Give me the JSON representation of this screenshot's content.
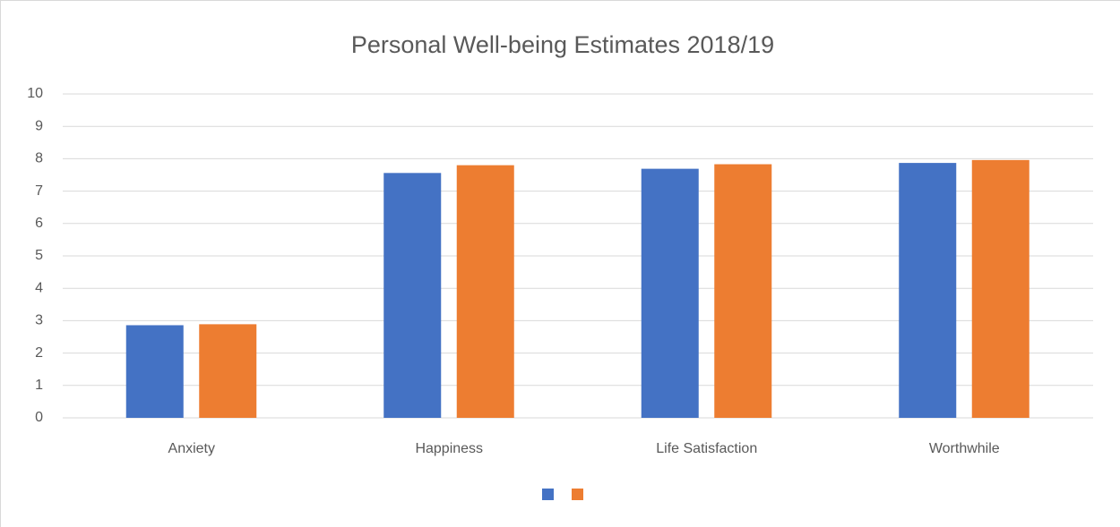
{
  "chart_data": {
    "type": "bar",
    "title": "Personal Well-being Estimates 2018/19",
    "categories": [
      "Anxiety",
      "Happiness",
      "Life Satisfaction",
      "Worthwhile"
    ],
    "series": [
      {
        "color": "#4472c4",
        "values": [
          2.86,
          7.56,
          7.69,
          7.87
        ]
      },
      {
        "color": "#ed7d31",
        "values": [
          2.89,
          7.8,
          7.83,
          7.96
        ]
      }
    ],
    "ylim": [
      0,
      10
    ],
    "yticks": [
      0,
      1,
      2,
      3,
      4,
      5,
      6,
      7,
      8,
      9,
      10
    ],
    "grid": true,
    "legend": "bottom"
  }
}
